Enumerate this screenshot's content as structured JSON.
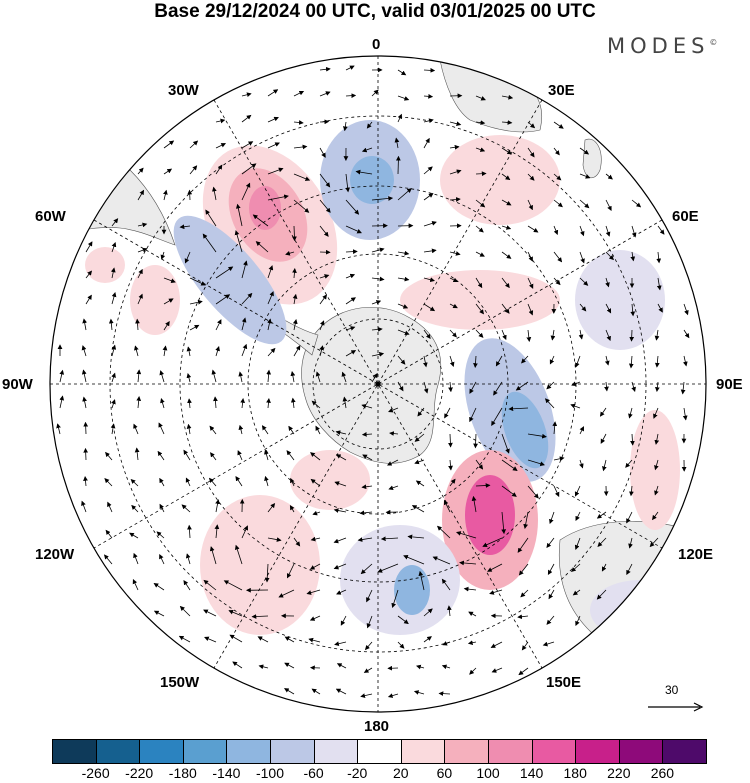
{
  "title": "Base 29/12/2024 00 UTC, valid 03/01/2025 00 UTC",
  "brand": "MODES",
  "brand_mark": "©",
  "map": {
    "projection": "south polar stereographic",
    "longitude_labels": [
      "0",
      "30E",
      "60E",
      "90E",
      "120E",
      "150E",
      "180",
      "150W",
      "120W",
      "90W",
      "60W",
      "30W"
    ],
    "grid": "dashed",
    "land_color": "#ebebeb",
    "arrow_color": "#000000"
  },
  "reference_vector": {
    "label": "30",
    "icon": "arrow-right-icon"
  },
  "colorbar": {
    "colors": [
      "#0e3a5a",
      "#15608f",
      "#2b83c0",
      "#5a9fd0",
      "#8fb6e0",
      "#bcc8e6",
      "#e2e0f0",
      "#ffffff",
      "#fadadd",
      "#f5b0bd",
      "#ef8db0",
      "#e85aa2",
      "#c8208a",
      "#8e0a7a",
      "#4e0a6a"
    ],
    "tick_labels": [
      "-260",
      "-220",
      "-180",
      "-140",
      "-100",
      "-60",
      "-20",
      "20",
      "60",
      "100",
      "140",
      "180",
      "220",
      "260"
    ]
  }
}
